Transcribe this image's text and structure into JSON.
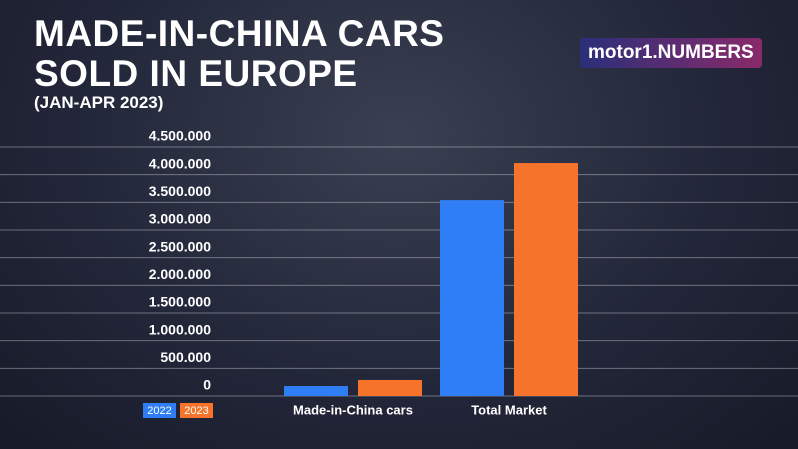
{
  "chart_data": {
    "type": "bar",
    "title": "MADE-IN-CHINA CARS SOLD IN EUROPE",
    "subtitle": "(JAN-APR 2023)",
    "logo": "motor1.NUMBERS",
    "categories": [
      "Made-in-China cars",
      "Total Market"
    ],
    "series": [
      {
        "name": "2022",
        "color": "#2f7ef5",
        "values": [
          180000,
          3540000
        ]
      },
      {
        "name": "2023",
        "color": "#f5732a",
        "values": [
          290000,
          4210000
        ]
      }
    ],
    "ylim": [
      0,
      4500000
    ],
    "yticks": [
      0,
      {
        "value": 500000,
        "label": "500.000"
      },
      {
        "value": 1000000,
        "label": "1.000.000"
      },
      {
        "value": 1500000,
        "label": "1.500.000"
      },
      {
        "value": 2000000,
        "label": "2.000.000"
      },
      {
        "value": 2500000,
        "label": "2.500.000"
      },
      {
        "value": 3000000,
        "label": "3.000.000"
      },
      {
        "value": 3500000,
        "label": "3.500.000"
      },
      {
        "value": 4000000,
        "label": "4.000.000"
      },
      {
        "value": 4500000,
        "label": "4.500.000"
      }
    ],
    "grid": true
  }
}
